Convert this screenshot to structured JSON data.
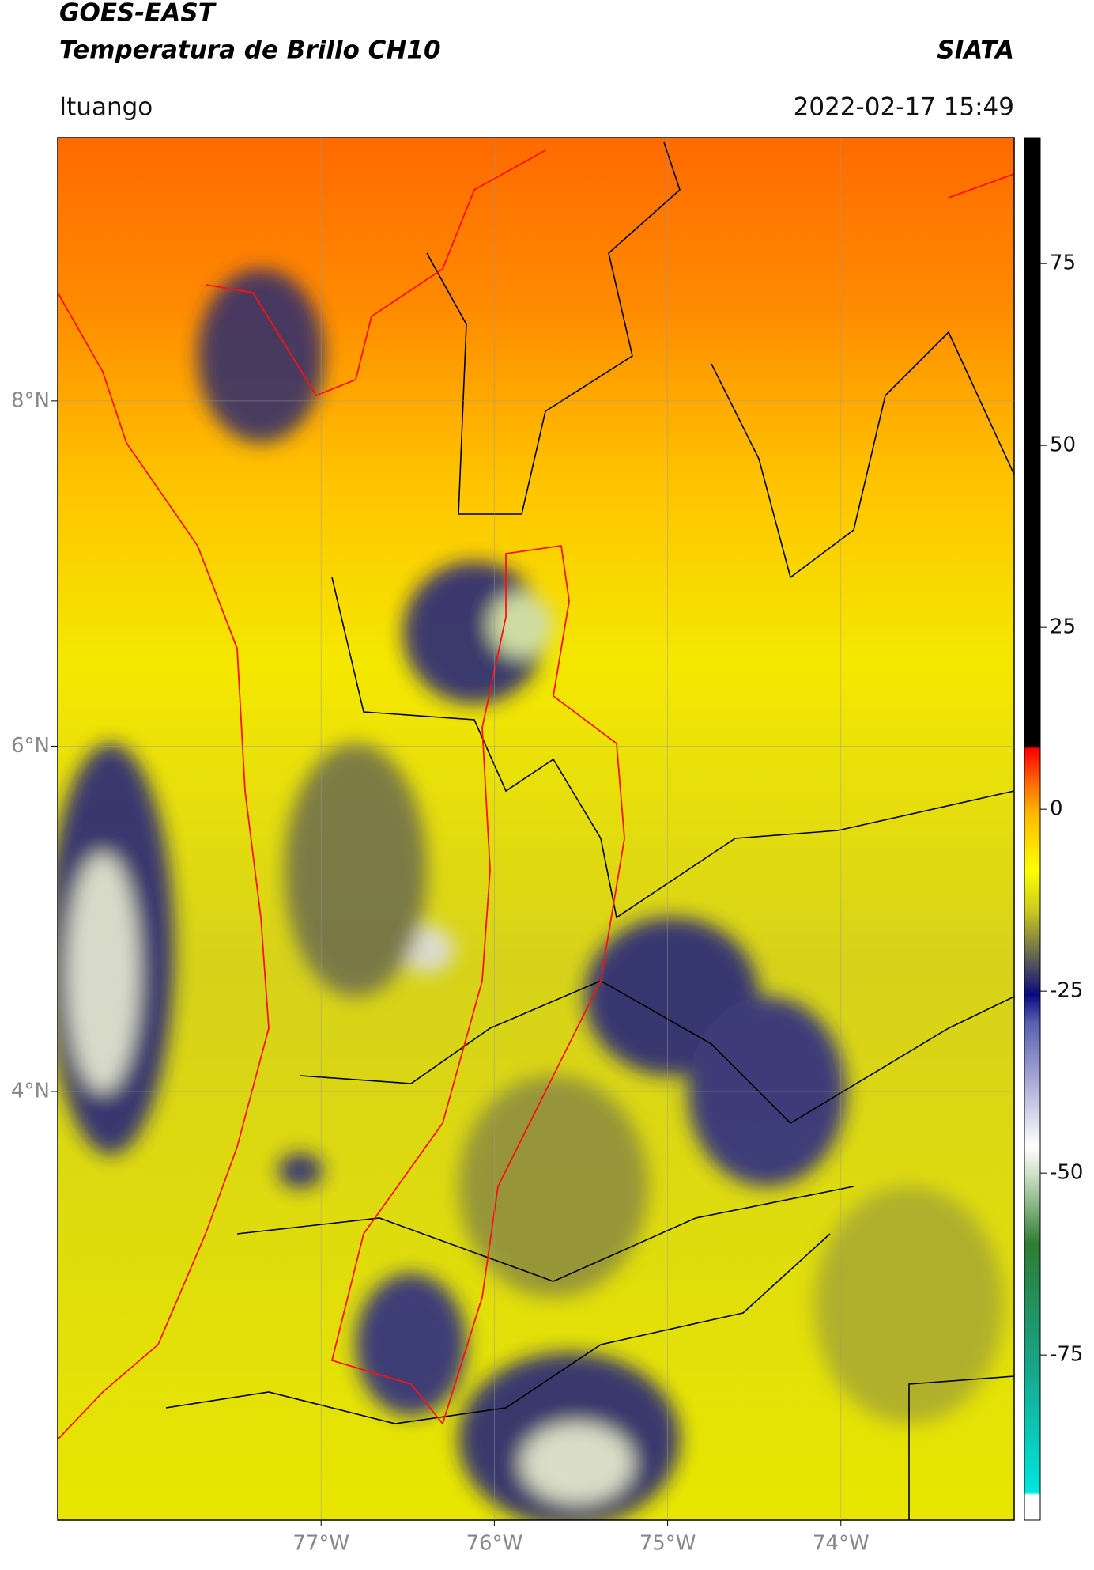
{
  "header": {
    "title_line1": "GOES-EAST",
    "title_line2": "Temperatura de Brillo CH10",
    "org": "SIATA",
    "location": "Ituango",
    "datetime": "2022-02-17 15:49"
  },
  "map": {
    "lonlim": [
      -78.52,
      -73.0
    ],
    "latlim": [
      1.517,
      9.525
    ],
    "lat_ticks": [
      {
        "value": 8,
        "label": "8°N"
      },
      {
        "value": 6,
        "label": "6°N"
      },
      {
        "value": 4,
        "label": "4°N"
      }
    ],
    "lon_ticks": [
      {
        "value": -77,
        "label": "77°W"
      },
      {
        "value": -76,
        "label": "76°W"
      },
      {
        "value": -75,
        "label": "75°W"
      },
      {
        "value": -74,
        "label": "74°W"
      }
    ]
  },
  "colorbar": {
    "lim": [
      -97.7,
      92.3
    ],
    "ticks": [
      75,
      50,
      25,
      0,
      -25,
      -50,
      -75
    ]
  }
}
